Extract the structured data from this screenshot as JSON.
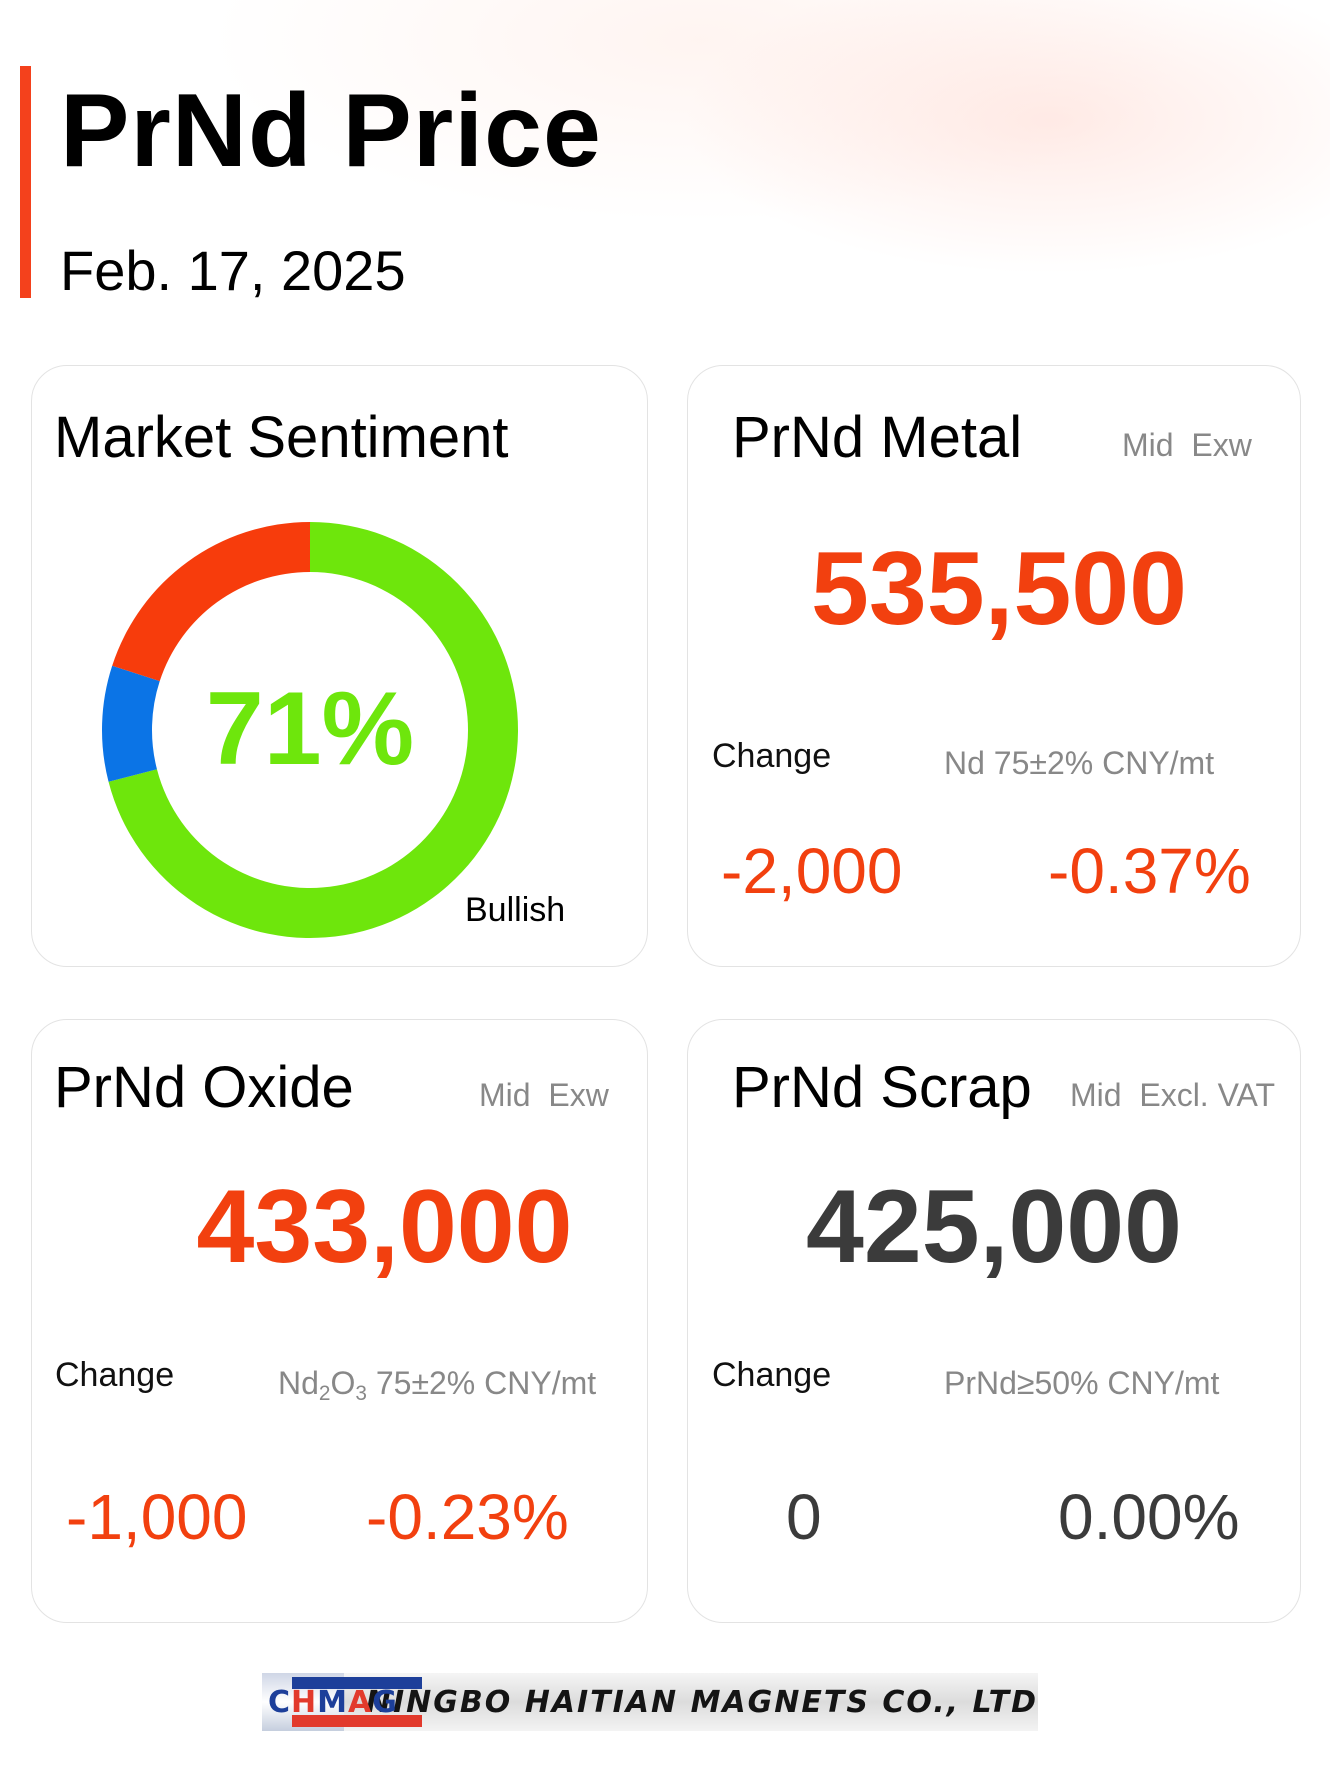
{
  "header": {
    "title": "PrNd Price",
    "date": "Feb. 17, 2025"
  },
  "sentiment": {
    "title": "Market Sentiment",
    "percent_label": "71%",
    "label": "Bullish",
    "segments": [
      {
        "name": "bullish",
        "percent": 71,
        "color": "#6ee60c"
      },
      {
        "name": "neutral",
        "percent": 9,
        "color": "#0b74e6"
      },
      {
        "name": "bearish",
        "percent": 20,
        "color": "#f73c0c"
      }
    ]
  },
  "metal": {
    "title": "PrNd Metal",
    "tag": "Mid  Exw",
    "price": "535,500",
    "change_label": "Change",
    "spec": "Nd 75±2% CNY/mt",
    "change_abs": "-2,000",
    "change_pct": "-0.37%"
  },
  "oxide": {
    "title": "PrNd Oxide",
    "tag": "Mid  Exw",
    "price": "433,000",
    "change_label": "Change",
    "spec_prefix": "Nd",
    "spec_sub1": "2",
    "spec_mid": "O",
    "spec_sub2": "3",
    "spec_suffix": " 75±2% CNY/mt",
    "change_abs": "-1,000",
    "change_pct": "-0.23%"
  },
  "scrap": {
    "title": "PrNd Scrap",
    "tag": "Mid  Excl. VAT",
    "price": "425,000",
    "change_label": "Change",
    "spec": "PrNd≥50% CNY/mt",
    "change_abs": "0",
    "change_pct": "0.00%"
  },
  "footer": {
    "logo_letters": [
      "C",
      "H",
      "M",
      "A",
      "G"
    ],
    "company": "NINGBO HAITIAN MAGNETS CO., LTD"
  }
}
